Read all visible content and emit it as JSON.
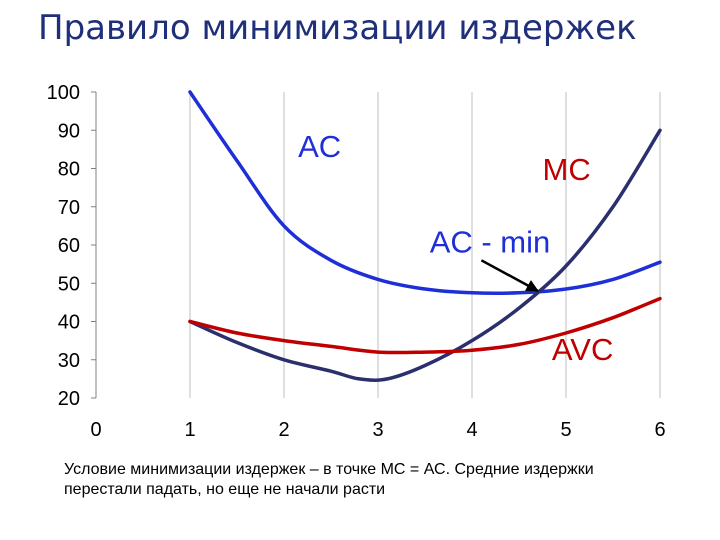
{
  "header": {
    "title": "Правило минимизации издержек"
  },
  "caption": {
    "text": "Условие минимизации издержек – в точке МС = АС. Средние издержки перестали падать, но еще не начали расти"
  },
  "chart_data": {
    "type": "line",
    "title": "",
    "xlabel": "",
    "ylabel": "",
    "xlim": [
      0,
      6
    ],
    "ylim": [
      20,
      100
    ],
    "xticks": [
      0,
      1,
      2,
      3,
      4,
      5,
      6
    ],
    "yticks": [
      20,
      30,
      40,
      50,
      60,
      70,
      80,
      90,
      100
    ],
    "grid": "vertical",
    "legend": "none",
    "series": [
      {
        "name": "AC",
        "color": "#1f2fd8",
        "points": [
          [
            1,
            100
          ],
          [
            1.5,
            82
          ],
          [
            2,
            65
          ],
          [
            2.5,
            56
          ],
          [
            3,
            51
          ],
          [
            3.5,
            48.5
          ],
          [
            4,
            47.5
          ],
          [
            4.5,
            47.5
          ],
          [
            5,
            48.5
          ],
          [
            5.5,
            51
          ],
          [
            6,
            55.5
          ]
        ]
      },
      {
        "name": "MC",
        "color": "#2b2f6e",
        "points": [
          [
            1,
            40
          ],
          [
            1.5,
            34.5
          ],
          [
            2,
            30
          ],
          [
            2.5,
            27
          ],
          [
            2.8,
            25
          ],
          [
            3.1,
            25
          ],
          [
            3.5,
            28.5
          ],
          [
            4,
            35
          ],
          [
            4.5,
            43.5
          ],
          [
            5,
            54.5
          ],
          [
            5.5,
            70
          ],
          [
            6,
            90
          ]
        ]
      },
      {
        "name": "AVC",
        "color": "#c00000",
        "points": [
          [
            1,
            40
          ],
          [
            1.5,
            37
          ],
          [
            2,
            35
          ],
          [
            2.5,
            33.5
          ],
          [
            3,
            32
          ],
          [
            3.5,
            32
          ],
          [
            4,
            32.5
          ],
          [
            4.5,
            34
          ],
          [
            5,
            37
          ],
          [
            5.5,
            41
          ],
          [
            6,
            46
          ]
        ]
      }
    ],
    "annotations": [
      {
        "text": "AC",
        "color": "#1f2fd8",
        "x": 2.15,
        "y": 83
      },
      {
        "text": "MC",
        "color": "#c00000",
        "x": 4.75,
        "y": 77
      },
      {
        "text": "AC - min",
        "color": "#1f2fd8",
        "x": 3.55,
        "y": 58
      },
      {
        "text": "AVC",
        "color": "#c00000",
        "x": 4.85,
        "y": 30
      }
    ],
    "arrow": {
      "from": [
        4.1,
        56
      ],
      "to": [
        4.7,
        48
      ]
    }
  }
}
